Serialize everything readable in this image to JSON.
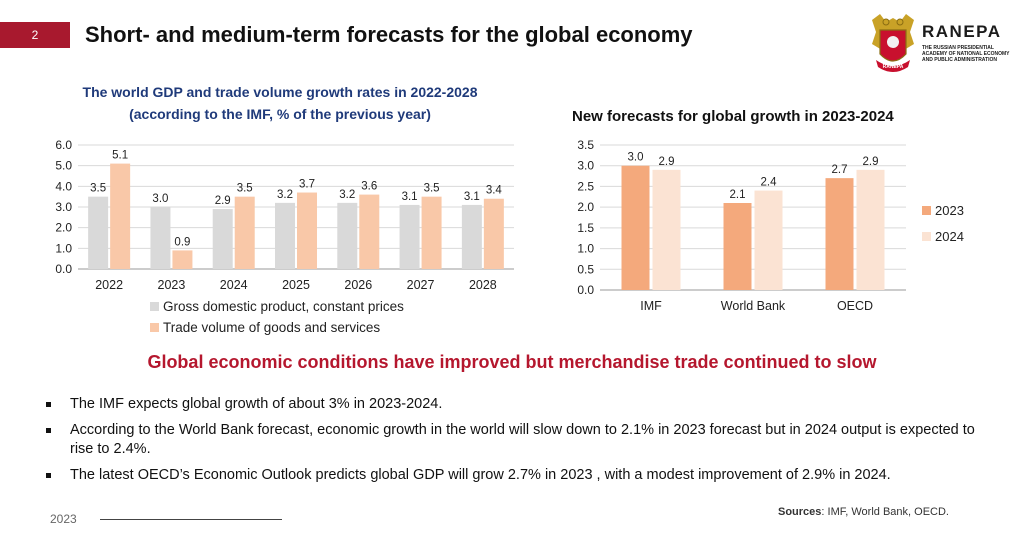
{
  "header": {
    "slide_number": "2",
    "title": "Short- and medium-term forecasts for the global economy",
    "logo": {
      "name": "RANEPA",
      "subtitle_lines": [
        "THE RUSSIAN PRESIDENTIAL",
        "ACADEMY OF NATIONAL ECONOMY",
        "AND PUBLIC ADMINISTRATION"
      ],
      "emblem_text": "RANEPA"
    }
  },
  "chart_data": [
    {
      "type": "bar",
      "title_lines": [
        "The world GDP and trade volume growth rates in 2022-2028",
        "(according to the IMF, % of the previous year)"
      ],
      "categories": [
        "2022",
        "2023",
        "2024",
        "2025",
        "2026",
        "2027",
        "2028"
      ],
      "series": [
        {
          "name": "Gross domestic product, constant prices",
          "color": "#d9d9d9",
          "values": [
            3.5,
            3.0,
            2.9,
            3.2,
            3.2,
            3.1,
            3.1
          ]
        },
        {
          "name": "Trade volume of goods and services",
          "color": "#f9c8a8",
          "values": [
            5.1,
            0.9,
            3.5,
            3.7,
            3.6,
            3.5,
            3.4
          ]
        }
      ],
      "ylim": [
        0,
        6
      ],
      "yticks": [
        "0.0",
        "1.0",
        "2.0",
        "3.0",
        "4.0",
        "5.0",
        "6.0"
      ],
      "legend_position": "bottom",
      "grid": true
    },
    {
      "type": "bar",
      "title": "New forecasts for global growth in 2023-2024",
      "categories": [
        "IMF",
        "World Bank",
        "OECD"
      ],
      "series": [
        {
          "name": "2023",
          "color": "#f4a97c",
          "values": [
            3.0,
            2.1,
            2.7
          ]
        },
        {
          "name": "2024",
          "color": "#fbe3d3",
          "values": [
            2.9,
            2.4,
            2.9
          ]
        }
      ],
      "ylim": [
        0,
        3.5
      ],
      "yticks": [
        "0.0",
        "0.5",
        "1.0",
        "1.5",
        "2.0",
        "2.5",
        "3.0",
        "3.5"
      ],
      "legend_position": "right",
      "grid": true
    }
  ],
  "headline": "Global economic conditions have improved but merchandise trade continued to slow",
  "bullets": [
    "The IMF expects global growth of about 3% in 2023-2024.",
    "According to the World Bank forecast, economic growth in the world will slow down to 2.1% in 2023 forecast but in 2024 output is expected to rise to 2.4%.",
    "The latest OECD’s Economic Outlook predicts global GDP will grow 2.7% in 2023 , with a modest improvement of 2.9% in 2024."
  ],
  "footer": {
    "sources_label": "Sources",
    "sources_text": ": IMF, World Bank, OECD.",
    "year": "2023"
  },
  "colors": {
    "accent": "#a8192e",
    "headline": "#b5172e",
    "chart1_title": "#1f3a7a"
  }
}
